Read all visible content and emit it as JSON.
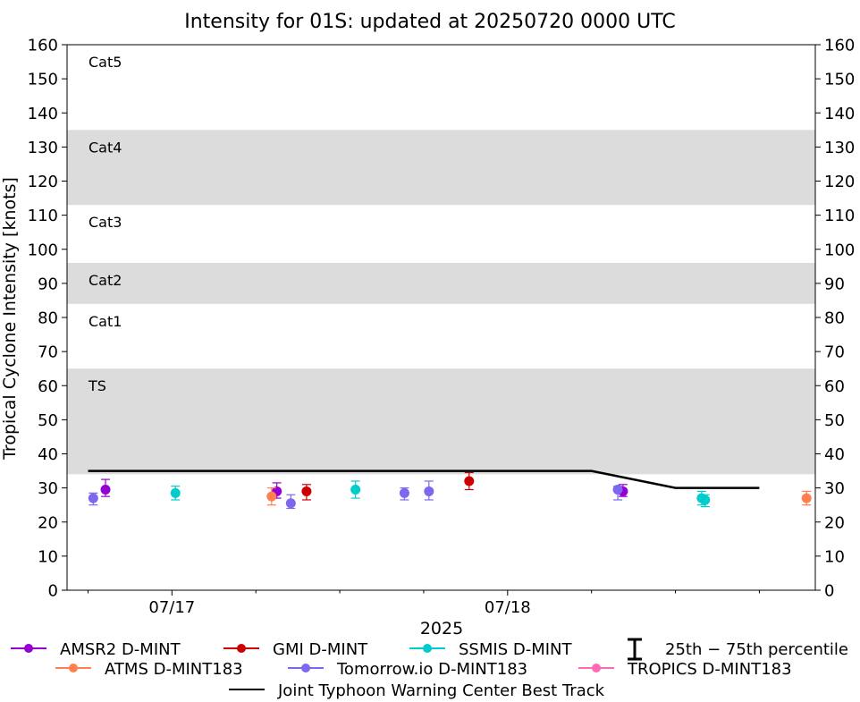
{
  "chart_data": {
    "type": "scatter",
    "title": "Intensity for 01S: updated at 20250720 0000 UTC",
    "xlabel": "2025",
    "ylabel": "Tropical Cyclone Intensity [knots]",
    "ylim": [
      0,
      160
    ],
    "xlim_hours_from_0717": [
      -30,
      184
    ],
    "y_ticks": [
      0,
      10,
      20,
      30,
      40,
      50,
      60,
      70,
      80,
      90,
      100,
      110,
      120,
      130,
      140,
      150,
      160
    ],
    "y_tick_labels": [
      "0",
      "10",
      "20",
      "30",
      "40",
      "50",
      "60",
      "70",
      "80",
      "90",
      "100",
      "110",
      "120",
      "130",
      "140",
      "150",
      "160"
    ],
    "x_major_ticks": [
      {
        "hours": 0,
        "label": "07/17"
      },
      {
        "hours": 96,
        "label": "07/18"
      }
    ],
    "x_minor_ticks_hours": [
      -24,
      24,
      48,
      72,
      120,
      144,
      168
    ],
    "categories": [
      {
        "label": "TS",
        "band": [
          34,
          65
        ],
        "shaded": true
      },
      {
        "label": "Cat1",
        "band": [
          65,
          84
        ],
        "shaded": false
      },
      {
        "label": "Cat2",
        "band": [
          84,
          96
        ],
        "shaded": true
      },
      {
        "label": "Cat3",
        "band": [
          96,
          113
        ],
        "shaded": false
      },
      {
        "label": "Cat4",
        "band": [
          113,
          135
        ],
        "shaded": true
      },
      {
        "label": "Cat5",
        "band": [
          135,
          160
        ],
        "shaded": false
      }
    ],
    "band_color": "#dcdcdc",
    "series": [
      {
        "name": "AMSR2 D-MINT",
        "color": "#9400d3",
        "points": [
          {
            "x": -19,
            "y": 29.5,
            "lo": 27.5,
            "hi": 32.5
          },
          {
            "x": 30,
            "y": 29,
            "lo": 27,
            "hi": 31.5
          },
          {
            "x": 129,
            "y": 29,
            "lo": 27.5,
            "hi": 31
          }
        ]
      },
      {
        "name": "GMI D-MINT",
        "color": "#cc0000",
        "points": [
          {
            "x": 38.5,
            "y": 29,
            "lo": 26.5,
            "hi": 31
          },
          {
            "x": 85,
            "y": 32,
            "lo": 29.5,
            "hi": 34.5
          }
        ]
      },
      {
        "name": "SSMIS D-MINT",
        "color": "#00cccc",
        "points": [
          {
            "x": 1,
            "y": 28.5,
            "lo": 26.5,
            "hi": 30.5
          },
          {
            "x": 52.5,
            "y": 29.5,
            "lo": 27,
            "hi": 32
          },
          {
            "x": 151.5,
            "y": 27,
            "lo": 25,
            "hi": 29
          },
          {
            "x": 152.5,
            "y": 26.5,
            "lo": 24.5,
            "hi": 28
          }
        ]
      },
      {
        "name": "ATMS D-MINT183",
        "color": "#ff7f50",
        "points": [
          {
            "x": 28.5,
            "y": 27.5,
            "lo": 25,
            "hi": 30
          },
          {
            "x": 181.5,
            "y": 27,
            "lo": 25,
            "hi": 29
          }
        ]
      },
      {
        "name": "Tomorrow.io D-MINT183",
        "color": "#7b68ee",
        "points": [
          {
            "x": -22.5,
            "y": 27,
            "lo": 25,
            "hi": 28.5
          },
          {
            "x": 34,
            "y": 25.5,
            "lo": 24,
            "hi": 28
          },
          {
            "x": 66.5,
            "y": 28.5,
            "lo": 26.5,
            "hi": 30
          },
          {
            "x": 73.5,
            "y": 29,
            "lo": 26.5,
            "hi": 32
          },
          {
            "x": 127.5,
            "y": 29.5,
            "lo": 26.5,
            "hi": 30.5
          }
        ]
      },
      {
        "name": "TROPICS D-MINT183",
        "color": "#ff69b4",
        "points": []
      }
    ],
    "best_track": {
      "name": "Joint Typhoon Warning Center Best Track",
      "color": "#000000",
      "x": [
        -24,
        0,
        24,
        48,
        72,
        96,
        120,
        144,
        168
      ],
      "y": [
        35,
        35,
        35,
        35,
        35,
        35,
        35,
        30,
        30
      ]
    },
    "percentile_legend_label": "25th − 75th percentile"
  }
}
